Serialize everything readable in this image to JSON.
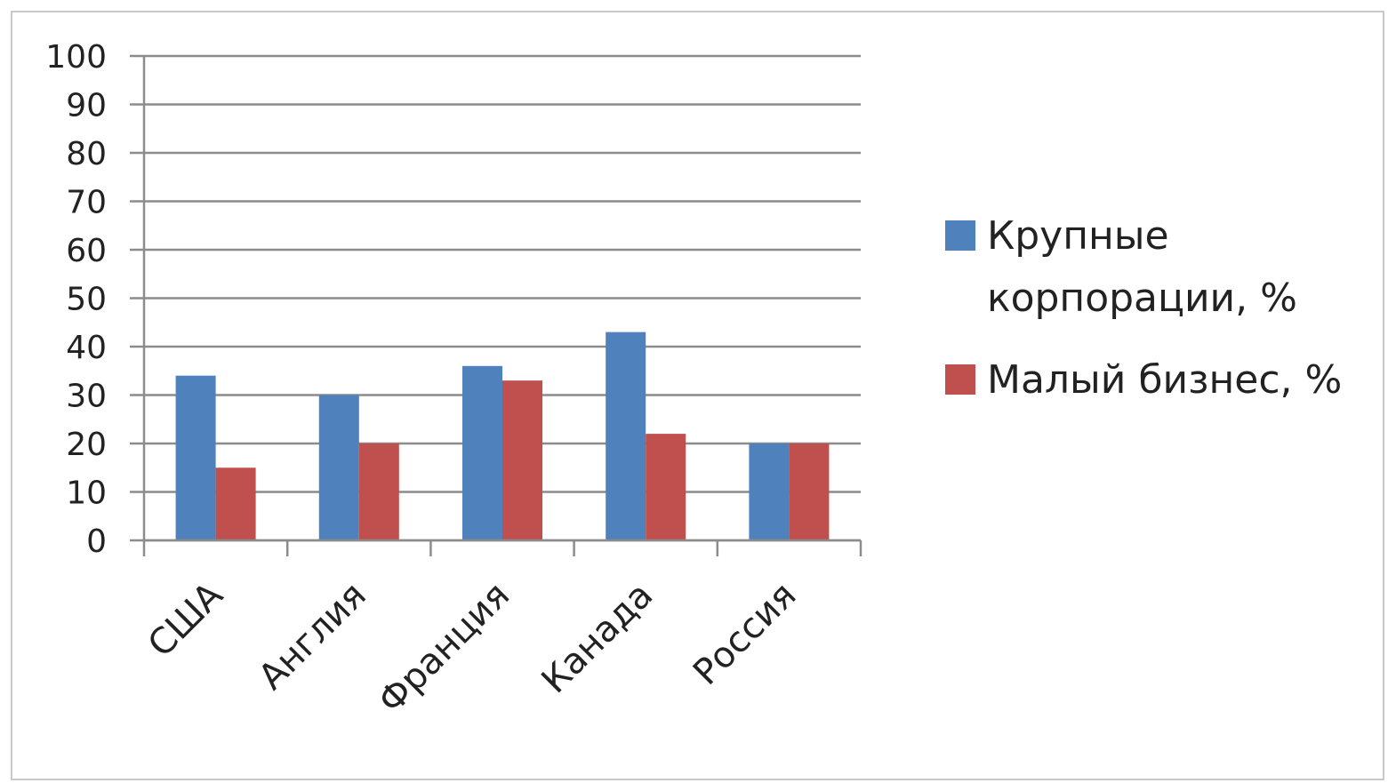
{
  "chart_data": {
    "type": "bar",
    "categories": [
      "США",
      "Англия",
      "Франция",
      "Канада",
      "Россия"
    ],
    "series": [
      {
        "name": "Крупные корпорации, %",
        "values": [
          34,
          30,
          36,
          43,
          20
        ],
        "color": "#4f81bd"
      },
      {
        "name": "Малый бизнес, %",
        "values": [
          15,
          20,
          33,
          22,
          20
        ],
        "color": "#c0504d"
      }
    ],
    "legend_lines": [
      [
        "Крупные",
        "корпорации, %"
      ],
      [
        "Малый бизнес, %"
      ]
    ],
    "ylim": [
      0,
      100
    ],
    "yticks": [
      "0",
      "10",
      "20",
      "30",
      "40",
      "50",
      "60",
      "70",
      "80",
      "90",
      "100"
    ],
    "grid": true,
    "legend_position": "right",
    "title": "",
    "xlabel": "",
    "ylabel": ""
  }
}
